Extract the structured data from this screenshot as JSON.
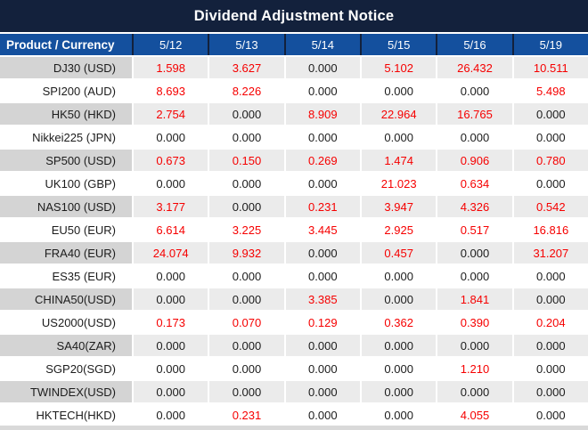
{
  "title": "Dividend Adjustment Notice",
  "colors": {
    "navy": "#13213c",
    "header_blue": "#14509e",
    "nonzero_red": "#f60000",
    "gray_product_cell": "#d4d4d4",
    "gray_value_cell": "#ebebeb",
    "text_dark": "#1c1c1c",
    "bottom_strip": "#d9d9d9"
  },
  "chart_data": {
    "type": "table",
    "title": "Dividend Adjustment Notice",
    "columns": [
      "Product / Currency",
      "5/12",
      "5/13",
      "5/14",
      "5/15",
      "5/16",
      "5/19"
    ],
    "rows": [
      {
        "product": "DJ30 (USD)",
        "values": [
          "1.598",
          "3.627",
          "0.000",
          "5.102",
          "26.432",
          "10.511"
        ]
      },
      {
        "product": "SPI200 (AUD)",
        "values": [
          "8.693",
          "8.226",
          "0.000",
          "0.000",
          "0.000",
          "5.498"
        ]
      },
      {
        "product": "HK50 (HKD)",
        "values": [
          "2.754",
          "0.000",
          "8.909",
          "22.964",
          "16.765",
          "0.000"
        ]
      },
      {
        "product": "Nikkei225 (JPN)",
        "values": [
          "0.000",
          "0.000",
          "0.000",
          "0.000",
          "0.000",
          "0.000"
        ]
      },
      {
        "product": "SP500 (USD)",
        "values": [
          "0.673",
          "0.150",
          "0.269",
          "1.474",
          "0.906",
          "0.780"
        ]
      },
      {
        "product": "UK100 (GBP)",
        "values": [
          "0.000",
          "0.000",
          "0.000",
          "21.023",
          "0.634",
          "0.000"
        ]
      },
      {
        "product": "NAS100 (USD)",
        "values": [
          "3.177",
          "0.000",
          "0.231",
          "3.947",
          "4.326",
          "0.542"
        ]
      },
      {
        "product": "EU50 (EUR)",
        "values": [
          "6.614",
          "3.225",
          "3.445",
          "2.925",
          "0.517",
          "16.816"
        ]
      },
      {
        "product": "FRA40 (EUR)",
        "values": [
          "24.074",
          "9.932",
          "0.000",
          "0.457",
          "0.000",
          "31.207"
        ]
      },
      {
        "product": "ES35 (EUR)",
        "values": [
          "0.000",
          "0.000",
          "0.000",
          "0.000",
          "0.000",
          "0.000"
        ]
      },
      {
        "product": "CHINA50(USD)",
        "values": [
          "0.000",
          "0.000",
          "3.385",
          "0.000",
          "1.841",
          "0.000"
        ]
      },
      {
        "product": "US2000(USD)",
        "values": [
          "0.173",
          "0.070",
          "0.129",
          "0.362",
          "0.390",
          "0.204"
        ]
      },
      {
        "product": "SA40(ZAR)",
        "values": [
          "0.000",
          "0.000",
          "0.000",
          "0.000",
          "0.000",
          "0.000"
        ]
      },
      {
        "product": "SGP20(SGD)",
        "values": [
          "0.000",
          "0.000",
          "0.000",
          "0.000",
          "1.210",
          "0.000"
        ]
      },
      {
        "product": "TWINDEX(USD)",
        "values": [
          "0.000",
          "0.000",
          "0.000",
          "0.000",
          "0.000",
          "0.000"
        ]
      },
      {
        "product": "HKTECH(HKD)",
        "values": [
          "0.000",
          "0.231",
          "0.000",
          "0.000",
          "4.055",
          "0.000"
        ]
      }
    ]
  }
}
